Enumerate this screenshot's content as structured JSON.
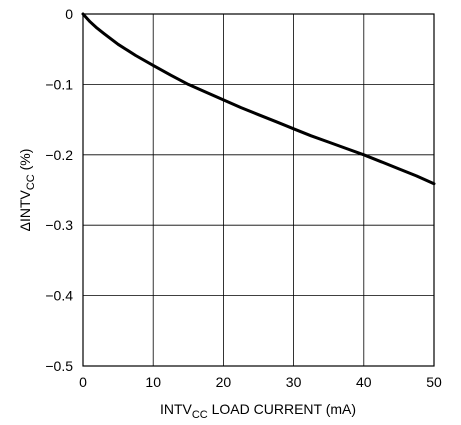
{
  "chart_data": {
    "type": "line",
    "xlabel": {
      "prefix": "INTV",
      "sub": "CC",
      "suffix": " LOAD CURRENT (mA)"
    },
    "ylabel": {
      "prefix": "ΔINTV",
      "sub": "CC",
      "suffix": " (%)"
    },
    "xlim": [
      0,
      50
    ],
    "ylim": [
      -0.5,
      0
    ],
    "xticks": [
      0,
      10,
      20,
      30,
      40,
      50
    ],
    "xtick_labels": [
      "0",
      "10",
      "20",
      "30",
      "40",
      "50"
    ],
    "yticks": [
      0,
      -0.1,
      -0.2,
      -0.3,
      -0.4,
      -0.5
    ],
    "ytick_labels": [
      "0",
      "−0.1",
      "−0.2",
      "−0.3",
      "−0.4",
      "−0.5"
    ],
    "grid": true,
    "series": [
      {
        "color": "#000000",
        "x": [
          0,
          1,
          2,
          3,
          5,
          7.5,
          10,
          12.5,
          15,
          17.5,
          20,
          22.5,
          25,
          27.5,
          30,
          32.5,
          35,
          37.5,
          40,
          42.5,
          45,
          47.5,
          50
        ],
        "y": [
          0,
          -0.011,
          -0.02,
          -0.028,
          -0.043,
          -0.059,
          -0.073,
          -0.087,
          -0.1,
          -0.111,
          -0.122,
          -0.133,
          -0.143,
          -0.153,
          -0.163,
          -0.173,
          -0.182,
          -0.191,
          -0.2,
          -0.21,
          -0.22,
          -0.23,
          -0.241
        ]
      }
    ]
  }
}
